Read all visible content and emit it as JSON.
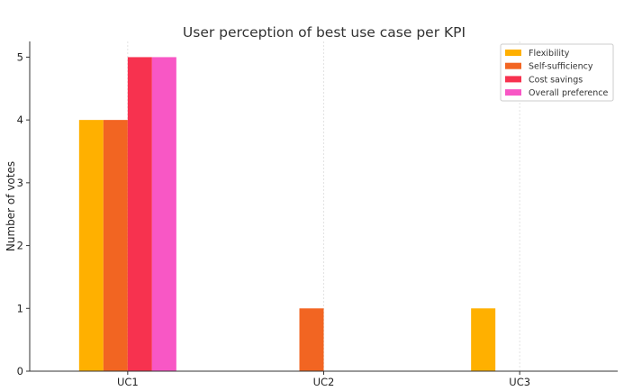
{
  "chart_data": {
    "type": "bar",
    "title": "User perception of best use case per KPI",
    "xlabel": "",
    "ylabel": "Number of votes",
    "categories": [
      "UC1",
      "UC2",
      "UC3"
    ],
    "ylim": [
      0,
      5.25
    ],
    "yticks": [
      0,
      1,
      2,
      3,
      4,
      5
    ],
    "grid": "vertical",
    "legend_position": "top-right",
    "series": [
      {
        "name": "Flexibility",
        "color": "#FFB000",
        "values": [
          4,
          0,
          1
        ]
      },
      {
        "name": "Self-sufficiency",
        "color": "#F26522",
        "values": [
          4,
          1,
          0
        ]
      },
      {
        "name": "Cost savings",
        "color": "#F7324F",
        "values": [
          5,
          0,
          0
        ]
      },
      {
        "name": "Overall preference",
        "color": "#F857C5",
        "values": [
          5,
          0,
          0
        ]
      }
    ]
  }
}
